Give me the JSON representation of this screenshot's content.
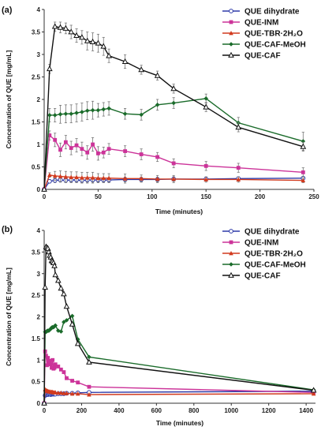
{
  "figure": {
    "panels": [
      "(a)",
      "(b)"
    ]
  },
  "chart_data": [
    {
      "type": "line",
      "panel_label": "(a)",
      "xlabel": "Time (minutes)",
      "ylabel": "Concentration of QUE [mg/mL]",
      "xlim": [
        0,
        250
      ],
      "ylim": [
        0,
        4
      ],
      "xticks": [
        0,
        50,
        100,
        150,
        200,
        250
      ],
      "yticks": [
        0,
        0.5,
        1,
        1.5,
        2,
        2.5,
        3,
        3.5,
        4
      ],
      "legend_position": "top-right",
      "series": [
        {
          "name": "QUE dihydrate",
          "color": "#2e3aa8",
          "marker": "circle-open",
          "x": [
            0,
            5,
            10,
            15,
            20,
            25,
            30,
            35,
            40,
            45,
            50,
            55,
            60,
            75,
            90,
            105,
            120,
            150,
            180,
            240
          ],
          "y": [
            0,
            0.18,
            0.2,
            0.21,
            0.2,
            0.21,
            0.21,
            0.2,
            0.21,
            0.21,
            0.21,
            0.21,
            0.21,
            0.22,
            0.22,
            0.22,
            0.23,
            0.23,
            0.24,
            0.25
          ],
          "err": [
            0,
            0.04,
            0.05,
            0.05,
            0.05,
            0.05,
            0.05,
            0.05,
            0.05,
            0.05,
            0.05,
            0.05,
            0.05,
            0.05,
            0.05,
            0.05,
            0.05,
            0.04,
            0.04,
            0.04
          ]
        },
        {
          "name": "QUE-INM",
          "color": "#cc3399",
          "marker": "square",
          "x": [
            0,
            5,
            10,
            15,
            20,
            25,
            30,
            35,
            40,
            45,
            50,
            55,
            60,
            75,
            90,
            105,
            120,
            150,
            180,
            240
          ],
          "y": [
            0,
            1.2,
            1.1,
            0.88,
            1.05,
            0.92,
            0.98,
            0.9,
            0.82,
            1.0,
            0.8,
            0.82,
            0.9,
            0.85,
            0.78,
            0.72,
            0.58,
            0.52,
            0.48,
            0.38
          ],
          "err": [
            0,
            0.1,
            0.15,
            0.15,
            0.15,
            0.15,
            0.15,
            0.15,
            0.15,
            0.15,
            0.15,
            0.12,
            0.12,
            0.12,
            0.12,
            0.1,
            0.1,
            0.1,
            0.1,
            0.1
          ]
        },
        {
          "name": "QUE-TBR·2H₂O",
          "color": "#d13a1e",
          "marker": "triangle",
          "x": [
            0,
            5,
            10,
            15,
            20,
            25,
            30,
            35,
            40,
            45,
            50,
            55,
            60,
            75,
            90,
            105,
            120,
            150,
            180,
            240
          ],
          "y": [
            0,
            0.32,
            0.3,
            0.29,
            0.28,
            0.27,
            0.27,
            0.26,
            0.26,
            0.26,
            0.25,
            0.25,
            0.25,
            0.24,
            0.24,
            0.23,
            0.23,
            0.22,
            0.22,
            0.2
          ],
          "err": [
            0,
            0.05,
            0.1,
            0.12,
            0.12,
            0.12,
            0.12,
            0.12,
            0.12,
            0.12,
            0.1,
            0.1,
            0.1,
            0.1,
            0.08,
            0.08,
            0.08,
            0.06,
            0.06,
            0.05
          ]
        },
        {
          "name": "QUE-CAF-MeOH",
          "color": "#1a6b2a",
          "marker": "diamond",
          "x": [
            0,
            5,
            10,
            15,
            20,
            25,
            30,
            35,
            40,
            45,
            50,
            55,
            60,
            75,
            90,
            105,
            120,
            150,
            180,
            240
          ],
          "y": [
            0,
            1.65,
            1.65,
            1.67,
            1.68,
            1.68,
            1.7,
            1.72,
            1.75,
            1.76,
            1.76,
            1.78,
            1.8,
            1.68,
            1.66,
            1.88,
            1.92,
            2.02,
            1.48,
            1.07
          ],
          "err": [
            0,
            0.15,
            0.15,
            0.2,
            0.2,
            0.2,
            0.2,
            0.2,
            0.2,
            0.2,
            0.15,
            0.15,
            0.15,
            0.12,
            0.12,
            0.12,
            0.12,
            0.1,
            0.12,
            0.2
          ]
        },
        {
          "name": "QUE-CAF",
          "color": "#111111",
          "marker": "triangle-open",
          "x": [
            0,
            5,
            10,
            15,
            20,
            25,
            30,
            35,
            40,
            45,
            50,
            55,
            60,
            75,
            90,
            105,
            120,
            150,
            180,
            240
          ],
          "y": [
            0,
            2.68,
            3.62,
            3.6,
            3.58,
            3.5,
            3.42,
            3.38,
            3.3,
            3.28,
            3.25,
            3.18,
            2.97,
            2.84,
            2.66,
            2.53,
            2.24,
            1.83,
            1.38,
            0.95
          ],
          "err": [
            0,
            0.1,
            0.1,
            0.12,
            0.12,
            0.15,
            0.15,
            0.15,
            0.2,
            0.2,
            0.2,
            0.2,
            0.15,
            0.15,
            0.1,
            0.1,
            0.1,
            0.1,
            0.1,
            0.1
          ]
        }
      ]
    },
    {
      "type": "line",
      "panel_label": "(b)",
      "xlabel": "Time (minutes)",
      "ylabel": "Concentration of QUE [mg/mL]",
      "xlim": [
        0,
        1450
      ],
      "ylim": [
        0,
        4
      ],
      "xticks": [
        0,
        200,
        400,
        600,
        800,
        1000,
        1200,
        1400
      ],
      "yticks": [
        0,
        0.5,
        1,
        1.5,
        2,
        2.5,
        3,
        3.5,
        4
      ],
      "legend_position": "top-right",
      "series": [
        {
          "name": "QUE dihydrate",
          "color": "#2e3aa8",
          "marker": "circle-open",
          "x": [
            0,
            5,
            10,
            15,
            20,
            25,
            30,
            35,
            40,
            45,
            50,
            55,
            60,
            75,
            90,
            105,
            120,
            150,
            180,
            240,
            1440
          ],
          "y": [
            0,
            0.18,
            0.2,
            0.21,
            0.2,
            0.21,
            0.21,
            0.2,
            0.21,
            0.21,
            0.21,
            0.21,
            0.21,
            0.22,
            0.22,
            0.22,
            0.23,
            0.23,
            0.24,
            0.25,
            0.28
          ]
        },
        {
          "name": "QUE-INM",
          "color": "#cc3399",
          "marker": "square",
          "x": [
            0,
            5,
            10,
            15,
            20,
            25,
            30,
            35,
            40,
            45,
            50,
            55,
            60,
            75,
            90,
            105,
            120,
            150,
            180,
            240,
            1440
          ],
          "y": [
            0,
            1.2,
            1.1,
            0.88,
            1.05,
            0.92,
            0.98,
            0.9,
            0.82,
            1.0,
            0.8,
            0.82,
            0.9,
            0.85,
            0.78,
            0.72,
            0.58,
            0.52,
            0.48,
            0.38,
            0.25
          ]
        },
        {
          "name": "QUE-TBR·2H₂O",
          "color": "#d13a1e",
          "marker": "triangle",
          "x": [
            0,
            5,
            10,
            15,
            20,
            25,
            30,
            35,
            40,
            45,
            50,
            55,
            60,
            75,
            90,
            105,
            120,
            150,
            180,
            240,
            1440
          ],
          "y": [
            0,
            0.32,
            0.3,
            0.29,
            0.28,
            0.27,
            0.27,
            0.26,
            0.26,
            0.26,
            0.25,
            0.25,
            0.25,
            0.24,
            0.24,
            0.23,
            0.23,
            0.22,
            0.22,
            0.2,
            0.22
          ]
        },
        {
          "name": "QUE-CAF-MeOH",
          "color": "#1a6b2a",
          "marker": "diamond",
          "x": [
            0,
            5,
            10,
            15,
            20,
            25,
            30,
            35,
            40,
            45,
            50,
            55,
            60,
            75,
            90,
            105,
            120,
            150,
            180,
            240,
            1440
          ],
          "y": [
            0,
            1.65,
            1.65,
            1.67,
            1.68,
            1.68,
            1.7,
            1.72,
            1.75,
            1.76,
            1.76,
            1.78,
            1.8,
            1.68,
            1.66,
            1.88,
            1.92,
            2.02,
            1.48,
            1.07,
            0.31
          ]
        },
        {
          "name": "QUE-CAF",
          "color": "#111111",
          "marker": "triangle-open",
          "x": [
            0,
            5,
            10,
            15,
            20,
            25,
            30,
            35,
            40,
            45,
            50,
            55,
            60,
            75,
            90,
            105,
            120,
            150,
            180,
            240,
            1440
          ],
          "y": [
            0,
            2.68,
            3.62,
            3.6,
            3.58,
            3.5,
            3.42,
            3.38,
            3.3,
            3.28,
            3.25,
            3.18,
            2.97,
            2.84,
            2.66,
            2.53,
            2.24,
            1.83,
            1.38,
            0.95,
            0.3
          ]
        }
      ]
    }
  ]
}
